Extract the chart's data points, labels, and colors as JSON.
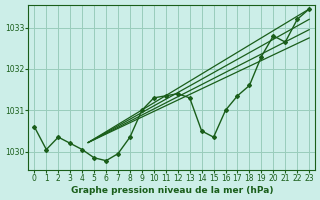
{
  "bg_color": "#cceee8",
  "grid_color": "#99ccbb",
  "line_color": "#1a5e1a",
  "title": "Graphe pression niveau de la mer (hPa)",
  "ylim": [
    1029.55,
    1033.55
  ],
  "xlim": [
    -0.5,
    23.5
  ],
  "yticks": [
    1030,
    1031,
    1032,
    1033
  ],
  "xticks": [
    0,
    1,
    2,
    3,
    4,
    5,
    6,
    7,
    8,
    9,
    10,
    11,
    12,
    13,
    14,
    15,
    16,
    17,
    18,
    19,
    20,
    21,
    22,
    23
  ],
  "hours": [
    0,
    1,
    2,
    3,
    4,
    5,
    6,
    7,
    8,
    9,
    10,
    11,
    12,
    13,
    14,
    15,
    16,
    17,
    18,
    19,
    20,
    21,
    22,
    23
  ],
  "pressure": [
    1030.6,
    1030.05,
    1030.35,
    1030.2,
    1030.05,
    1029.85,
    1029.78,
    1029.95,
    1030.35,
    1031.0,
    1031.3,
    1031.35,
    1031.4,
    1031.3,
    1030.5,
    1030.35,
    1031.0,
    1031.35,
    1031.6,
    1032.3,
    1032.8,
    1032.65,
    1033.2,
    1033.45
  ],
  "trend_lines": [
    {
      "x0": 4.5,
      "y0": 1030.22,
      "x1": 23,
      "y1": 1033.45
    },
    {
      "x0": 4.5,
      "y0": 1030.22,
      "x1": 23,
      "y1": 1033.2
    },
    {
      "x0": 4.5,
      "y0": 1030.22,
      "x1": 23,
      "y1": 1032.95
    },
    {
      "x0": 4.5,
      "y0": 1030.22,
      "x1": 23,
      "y1": 1032.75
    }
  ]
}
